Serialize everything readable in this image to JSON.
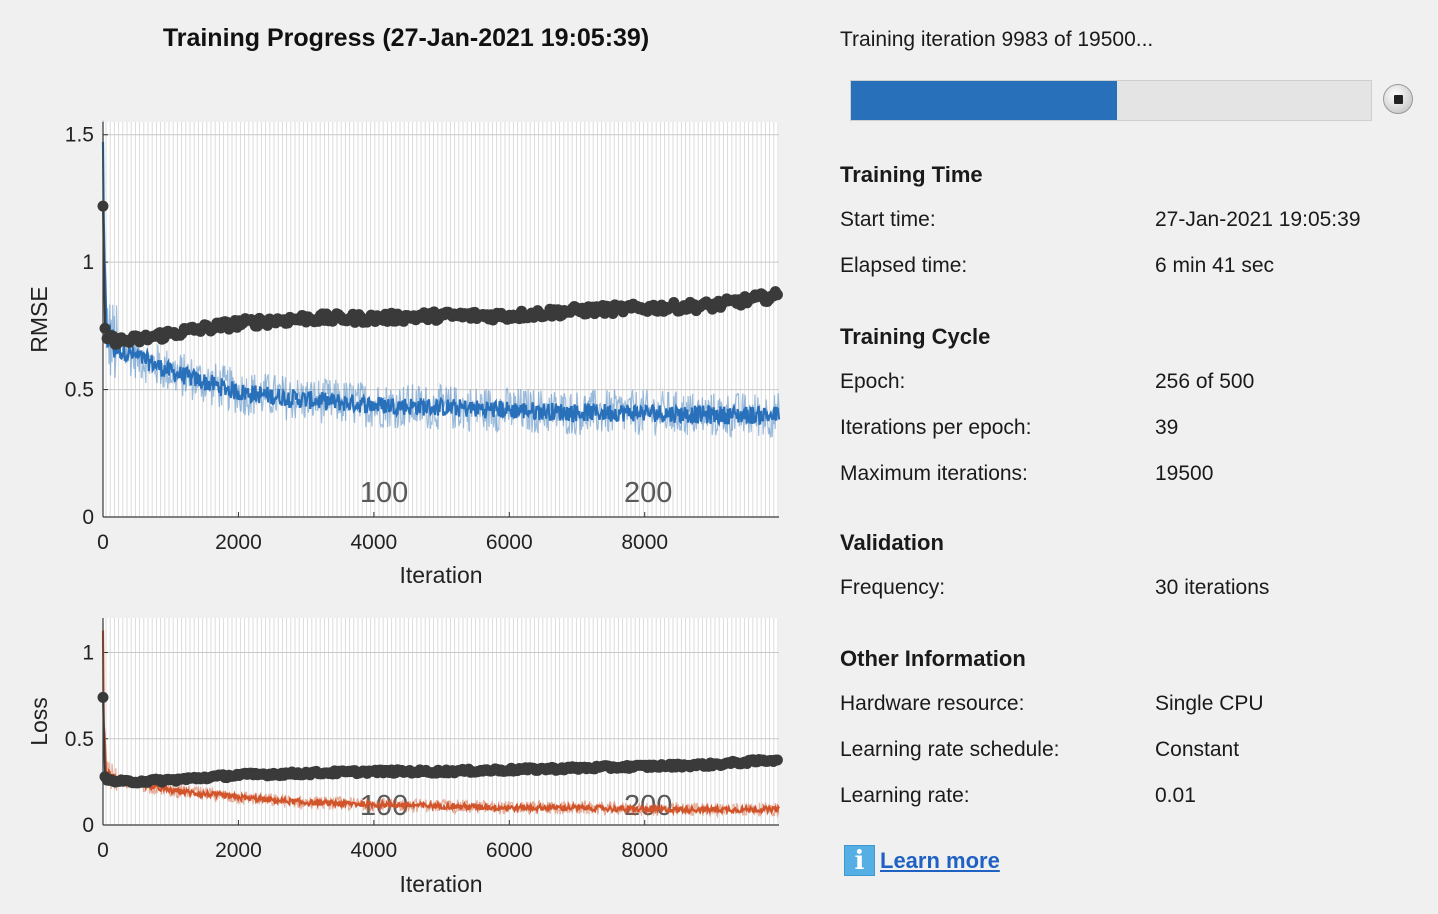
{
  "window": {
    "title": "Training Progress (27-Jan-2021 19:05:39)"
  },
  "colors": {
    "background": "#f0f0f0",
    "rmse_series": "#2970bb",
    "loss_series": "#d2542a",
    "validation": "#3a3a3a",
    "progress_fill": "#2970bb"
  },
  "status": {
    "text": "Training iteration 9983 of 19500...",
    "progress_fraction": 0.512
  },
  "sections": [
    {
      "title": "Training Time",
      "rows": [
        {
          "label": "Start time:",
          "value": "27-Jan-2021 19:05:39"
        },
        {
          "label": "Elapsed time:",
          "value": "6 min 41 sec"
        }
      ]
    },
    {
      "title": "Training Cycle",
      "rows": [
        {
          "label": "Epoch:",
          "value": "256 of 500"
        },
        {
          "label": "Iterations per epoch:",
          "value": "39"
        },
        {
          "label": "Maximum iterations:",
          "value": "19500"
        }
      ]
    },
    {
      "title": "Validation",
      "rows": [
        {
          "label": "Frequency:",
          "value": "30 iterations"
        }
      ]
    },
    {
      "title": "Other Information",
      "rows": [
        {
          "label": "Hardware resource:",
          "value": "Single CPU"
        },
        {
          "label": "Learning rate schedule:",
          "value": "Constant"
        },
        {
          "label": "Learning rate:",
          "value": "0.01"
        }
      ]
    }
  ],
  "learn_more": {
    "label": "Learn more",
    "icon": "info-icon"
  },
  "chart_data": [
    {
      "type": "line",
      "title": "",
      "xlabel": "Iteration",
      "ylabel": "RMSE",
      "xlim": [
        0,
        9983
      ],
      "ylim": [
        0,
        1.55
      ],
      "xticks": [
        0,
        2000,
        4000,
        6000,
        8000
      ],
      "yticks": [
        0,
        0.5,
        1,
        1.5
      ],
      "epoch_labels": [
        {
          "epoch": 100,
          "iteration": 3900
        },
        {
          "epoch": 200,
          "iteration": 7800
        }
      ],
      "grid": true,
      "series": [
        {
          "role": "training",
          "x": [
            0,
            10,
            50,
            200,
            500,
            1000,
            1500,
            2000,
            3000,
            4000,
            5000,
            6000,
            7000,
            8000,
            9000,
            9983
          ],
          "y": [
            1.5,
            1.1,
            0.72,
            0.66,
            0.63,
            0.57,
            0.53,
            0.49,
            0.46,
            0.44,
            0.43,
            0.42,
            0.41,
            0.41,
            0.4,
            0.4
          ]
        },
        {
          "role": "validation",
          "x": [
            0,
            30,
            60,
            300,
            600,
            1000,
            2000,
            3000,
            4000,
            5000,
            6000,
            7000,
            8000,
            9000,
            9983
          ],
          "y": [
            1.22,
            0.74,
            0.7,
            0.69,
            0.7,
            0.72,
            0.76,
            0.78,
            0.78,
            0.79,
            0.79,
            0.81,
            0.82,
            0.83,
            0.87
          ]
        }
      ]
    },
    {
      "type": "line",
      "title": "",
      "xlabel": "Iteration",
      "ylabel": "Loss",
      "xlim": [
        0,
        9983
      ],
      "ylim": [
        0,
        1.2
      ],
      "xticks": [
        0,
        2000,
        4000,
        6000,
        8000
      ],
      "yticks": [
        0,
        0.5,
        1
      ],
      "epoch_labels": [
        {
          "epoch": 100,
          "iteration": 3900
        },
        {
          "epoch": 200,
          "iteration": 7800
        }
      ],
      "grid": true,
      "series": [
        {
          "role": "training",
          "x": [
            0,
            10,
            50,
            200,
            500,
            1000,
            2000,
            3000,
            4000,
            5000,
            6000,
            7000,
            8000,
            9000,
            9983
          ],
          "y": [
            1.15,
            0.6,
            0.3,
            0.26,
            0.24,
            0.2,
            0.16,
            0.13,
            0.12,
            0.11,
            0.1,
            0.1,
            0.09,
            0.09,
            0.09
          ]
        },
        {
          "role": "validation",
          "x": [
            0,
            30,
            60,
            300,
            1000,
            2000,
            3000,
            4000,
            5000,
            6000,
            7000,
            8000,
            9000,
            9983
          ],
          "y": [
            0.74,
            0.28,
            0.26,
            0.25,
            0.26,
            0.29,
            0.3,
            0.31,
            0.31,
            0.32,
            0.33,
            0.34,
            0.35,
            0.38
          ]
        }
      ]
    }
  ]
}
